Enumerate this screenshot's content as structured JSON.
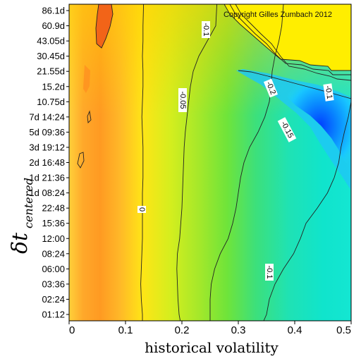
{
  "chart_data": {
    "type": "heatmap",
    "subtype": "filled-contour",
    "copyright": "Copyright Gilles Zumbach 2012",
    "xlabel": "historical volatility",
    "ylabel_main": "δt",
    "ylabel_sub": "centered",
    "xlim": [
      0,
      0.5
    ],
    "x_ticks": [
      "0",
      "0.1",
      "0.2",
      "0.3",
      "0.4",
      "0.5"
    ],
    "y_ticks": [
      "01:12",
      "02:24",
      "03:36",
      "06:00",
      "08:24",
      "12:00",
      "15:36",
      "22:48",
      "1d 08:24",
      "1d 21:36",
      "2d 16:48",
      "3d 19:12",
      "5d 09:36",
      "7d 14:24",
      "10.75d",
      "15.2d",
      "21.55d",
      "30.45d",
      "43.05d",
      "60.9d",
      "86.1d"
    ],
    "colorscale": [
      "#ff3300",
      "#ff8a1a",
      "#ffc81f",
      "#fff200",
      "#d6ef1a",
      "#7ee830",
      "#2fe08a",
      "#1ee8c8",
      "#00d4ff",
      "#0050ff"
    ],
    "contours": [
      {
        "level": "0",
        "x": [
          0.13,
          0.13,
          0.128,
          0.127,
          0.128,
          0.129,
          0.13,
          0.13,
          0.13,
          0.13,
          0.131,
          0.131,
          0.131,
          0.13,
          0.129,
          0.13,
          0.131,
          0.131,
          0.13,
          0.131,
          0.131,
          0.132
        ]
      },
      {
        "level": "-0.05",
        "x": [
          0.197,
          0.195,
          0.193,
          0.192,
          0.191,
          0.192,
          0.196,
          0.198,
          0.2,
          0.201,
          0.202,
          0.203,
          0.204,
          0.206,
          0.209,
          0.212,
          0.215,
          0.22,
          0.23,
          0.245,
          0.26,
          0.262
        ]
      },
      {
        "level": "-0.1",
        "x": [
          0.25,
          0.25,
          0.25,
          0.252,
          0.258,
          0.268,
          0.282,
          0.29,
          0.296,
          0.3,
          0.304,
          0.31,
          0.32,
          0.335,
          0.347,
          0.355,
          0.358,
          0.36,
          0.365,
          0.372,
          0.377,
          0.38
        ]
      },
      {
        "level": "-0.15",
        "x": [
          0.345,
          0.35,
          0.355,
          0.365,
          0.38,
          0.398,
          0.41,
          0.42,
          0.44,
          0.458,
          0.47,
          0.478,
          0.482,
          0.488,
          0.495,
          0.5,
          0.5,
          0.5,
          0.5,
          0.5,
          0.5,
          0.5
        ]
      }
    ],
    "contour_labels": [
      "0",
      "-0.05",
      "-0.1",
      "-0.1",
      "-0.15",
      "-0.2",
      "-0.1"
    ]
  }
}
